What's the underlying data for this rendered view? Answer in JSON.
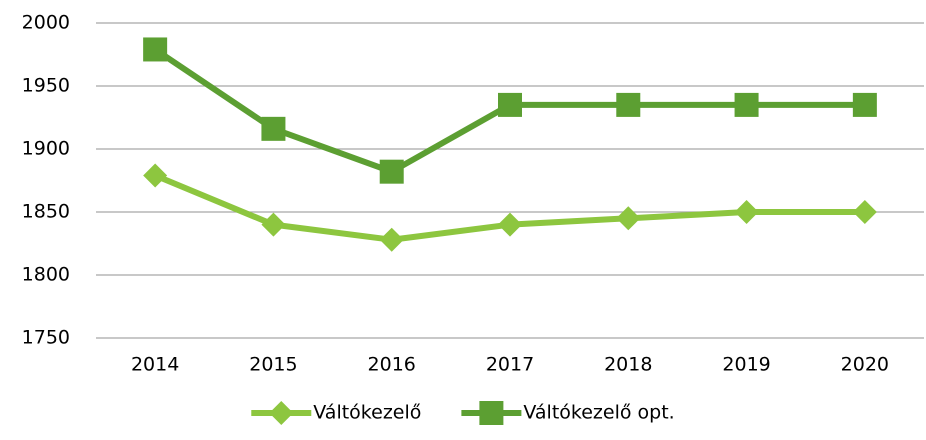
{
  "chart_data": {
    "type": "line",
    "categories": [
      "2014",
      "2015",
      "2016",
      "2017",
      "2018",
      "2019",
      "2020"
    ],
    "series": [
      {
        "name": "Váltókezelő",
        "color": "#8dc63f",
        "marker": "diamond",
        "values": [
          1879,
          1840,
          1828,
          1840,
          1845,
          1850,
          1850
        ]
      },
      {
        "name": "Váltókezelő opt.",
        "color": "#5c9f32",
        "marker": "square",
        "values": [
          1979,
          1916,
          1882,
          1935,
          1935,
          1935,
          1935
        ]
      }
    ],
    "ylim": [
      1750,
      2000
    ],
    "yticks": [
      1750,
      1800,
      1850,
      1900,
      1950,
      2000
    ],
    "grid": true,
    "legend": "bottom"
  }
}
